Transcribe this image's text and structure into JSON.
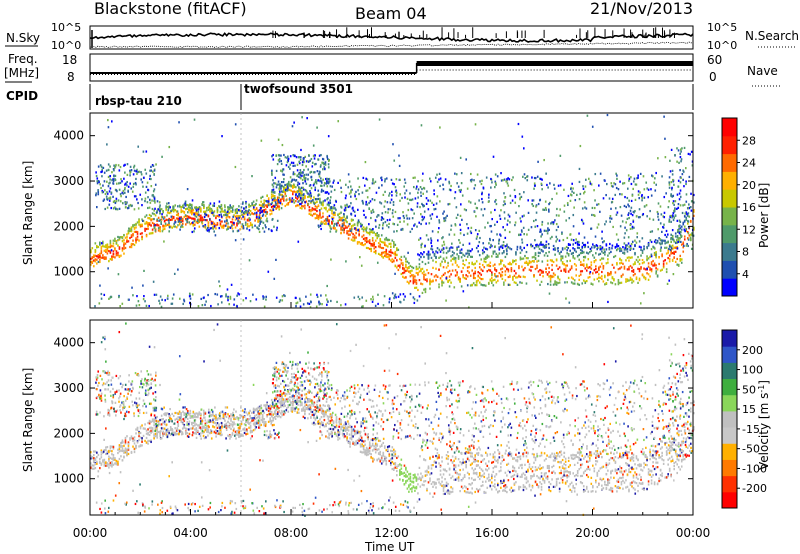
{
  "header": {
    "station": "Blackstone (fitACF)",
    "beam": "Beam 04",
    "date": "21/Nov/2013"
  },
  "param_panels": {
    "nsky_label": "N.Sky",
    "nsearch_label": "N.Search",
    "nsky_ticks": [
      "10^5",
      "10^0"
    ],
    "nsky_right_ticks": [
      "10^5",
      "10^0"
    ],
    "freq_label_1": "Freq.",
    "freq_label_2": "[MHz]",
    "freq_ticks": [
      "18",
      "8"
    ],
    "nave_label": "Nave",
    "nave_ticks": [
      "60",
      "0"
    ],
    "cpid_label": "CPID",
    "programs": [
      "rbsp-tau 210",
      "twofsound 3501"
    ]
  },
  "colors": {
    "power_scale": [
      "#0000ff",
      "#1f4fb0",
      "#3b7a8e",
      "#4f9a6a",
      "#77b34a",
      "#c8c800",
      "#ffb000",
      "#ff6a00",
      "#ff2000",
      "#ff0000"
    ],
    "velocity_scale": [
      "#1a1aa8",
      "#2f56c8",
      "#2b7a6f",
      "#3fae3f",
      "#8ad65a",
      "#c0c0c0",
      "#c8c8c8",
      "#ffb000",
      "#ff7a00",
      "#ff3000",
      "#ff0000"
    ]
  },
  "chart_data": [
    {
      "type": "heatmap",
      "title": "Power",
      "ylabel": "Slant Range [km]",
      "xlabel": "Time UT",
      "ylim": [
        200,
        4500
      ],
      "xlim": [
        "00:00",
        "24:00"
      ],
      "yticks": [
        1000,
        2000,
        3000,
        4000
      ],
      "xticks": [
        "00:00",
        "04:00",
        "08:00",
        "12:00",
        "16:00",
        "20:00",
        "00:00"
      ],
      "colorbar_label": "Power [dB]",
      "colorbar_ticks": [
        "28",
        "24",
        "20",
        "16",
        "12",
        "8",
        "4"
      ],
      "main_echo_range_km": [
        {
          "t": 0,
          "r": 1300
        },
        {
          "t": 1,
          "r": 1450
        },
        {
          "t": 2,
          "r": 1900
        },
        {
          "t": 3,
          "r": 2150
        },
        {
          "t": 4,
          "r": 2200
        },
        {
          "t": 6,
          "r": 2100
        },
        {
          "t": 8,
          "r": 2700
        },
        {
          "t": 10,
          "r": 2000
        },
        {
          "t": 12,
          "r": 1400
        },
        {
          "t": 12.8,
          "r": 800
        },
        {
          "t": 14,
          "r": 1000
        },
        {
          "t": 18,
          "r": 1050
        },
        {
          "t": 22,
          "r": 1050
        },
        {
          "t": 23.5,
          "r": 1500
        },
        {
          "t": 24,
          "r": 2200
        }
      ]
    },
    {
      "type": "heatmap",
      "title": "Velocity",
      "ylabel": "Slant Range [km]",
      "xlabel": "Time UT",
      "ylim": [
        200,
        4500
      ],
      "xlim": [
        "00:00",
        "24:00"
      ],
      "yticks": [
        1000,
        2000,
        3000,
        4000
      ],
      "xticks": [
        "00:00",
        "04:00",
        "08:00",
        "12:00",
        "16:00",
        "20:00",
        "00:00"
      ],
      "colorbar_label": "Velocity [m s^-1]",
      "colorbar_ticks": [
        "200",
        "100",
        "50",
        "15",
        "-15",
        "-50",
        "-100",
        "-200"
      ]
    }
  ]
}
